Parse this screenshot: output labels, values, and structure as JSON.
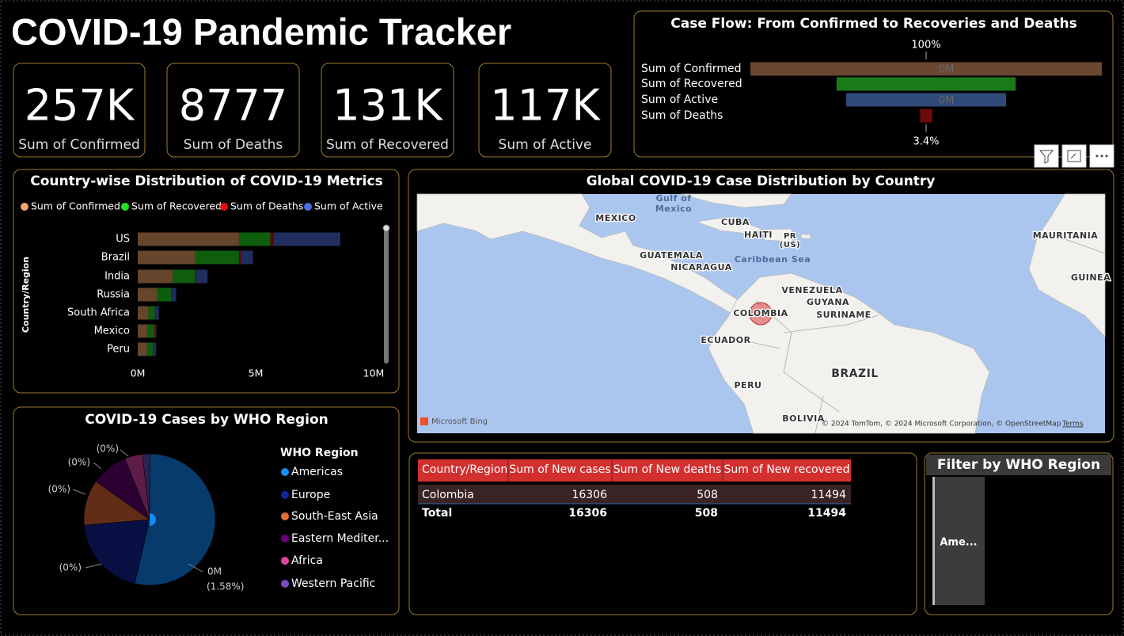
{
  "title": "COVID-19 Pandemic Tracker",
  "cards": [
    {
      "value": "257K",
      "label": "Sum of Confirmed"
    },
    {
      "value": "8777",
      "label": "Sum of Deaths"
    },
    {
      "value": "131K",
      "label": "Sum of Recovered"
    },
    {
      "value": "117K",
      "label": "Sum of Active"
    }
  ],
  "chart_data": [
    {
      "type": "funnel",
      "title": "Case Flow: From Confirmed to Recoveries and Deaths",
      "categories": [
        "Sum of Confirmed",
        "Sum of Recovered",
        "Sum of Active",
        "Sum of Deaths"
      ],
      "values": [
        257000,
        131000,
        117000,
        8777
      ],
      "value_labels": [
        "0M",
        null,
        "0M",
        null
      ],
      "colors": [
        "#6b4630",
        "#1a7a1a",
        "#2f4a78",
        "#6e0a0a"
      ],
      "top_label": "100%",
      "bottom_label": "3.4%"
    },
    {
      "type": "stacked-bar-horizontal",
      "title": "Country-wise Distribution of COVID-19 Metrics",
      "y_label": "Country/Region",
      "categories": [
        "US",
        "Brazil",
        "India",
        "Russia",
        "South Africa",
        "Mexico",
        "Peru"
      ],
      "series": [
        {
          "name": "Sum of Confirmed",
          "color": "#f3a46c",
          "values": [
            4.29,
            2.44,
            1.48,
            0.82,
            0.45,
            0.4,
            0.39
          ]
        },
        {
          "name": "Sum of Recovered",
          "color": "#22e022",
          "values": [
            1.33,
            1.85,
            0.95,
            0.6,
            0.27,
            0.3,
            0.27
          ]
        },
        {
          "name": "Sum of Deaths",
          "color": "#e01010",
          "values": [
            0.15,
            0.09,
            0.03,
            0.01,
            0.01,
            0.04,
            0.02
          ]
        },
        {
          "name": "Sum of Active",
          "color": "#4a6ee0",
          "values": [
            2.82,
            0.51,
            0.5,
            0.2,
            0.17,
            0.05,
            0.1
          ]
        }
      ],
      "xlim": [
        0,
        10
      ],
      "xticks": [
        {
          "value": 0,
          "label": "0M"
        },
        {
          "value": 5,
          "label": "5M"
        },
        {
          "value": 10,
          "label": "10M"
        }
      ]
    },
    {
      "type": "pie",
      "title": "COVID-19 Cases by WHO Region",
      "legend_title": "WHO Region",
      "categories": [
        "Americas",
        "Europe",
        "South-East Asia",
        "Eastern Mediter...",
        "Africa",
        "Western Pacific"
      ],
      "values": [
        8.84,
        3.3,
        1.84,
        1.49,
        0.72,
        0.29
      ],
      "colors": [
        "#118dff",
        "#12239e",
        "#e66c37",
        "#6b007b",
        "#e044a7",
        "#744ec2"
      ],
      "annotations": [
        "0M",
        "(1.58%)",
        "(0%)",
        "(0%)",
        "(0%)",
        "(0%)"
      ]
    }
  ],
  "map": {
    "title": "Global COVID-19 Case Distribution by Country",
    "labels": [
      "MEXICO",
      "Gulf of",
      "Mexico",
      "CUBA",
      "HAITI",
      "PR",
      "(US)",
      "Caribbean Sea",
      "GUATEMALA",
      "NICARAGUA",
      "VENEZUELA",
      "GUYANA",
      "SURINAME",
      "COLOMBIA",
      "ECUADOR",
      "BRAZIL",
      "PERU",
      "BOLIVIA",
      "MAURITANIA",
      "GUINEA"
    ],
    "logo": "Microsoft Bing",
    "attribution": "© 2024 TomTom, © 2024 Microsoft Corporation, © OpenStreetMap",
    "terms": "Terms"
  },
  "table": {
    "columns": [
      "Country/Region",
      "Sum of New cases",
      "Sum of New deaths",
      "Sum of New recovered"
    ],
    "rows": [
      [
        "Colombia",
        16306,
        508,
        11494
      ]
    ],
    "total": [
      "Total",
      16306,
      508,
      11494
    ]
  },
  "slicer": {
    "title": "Filter by WHO Region",
    "items": [
      "Ame..."
    ]
  }
}
